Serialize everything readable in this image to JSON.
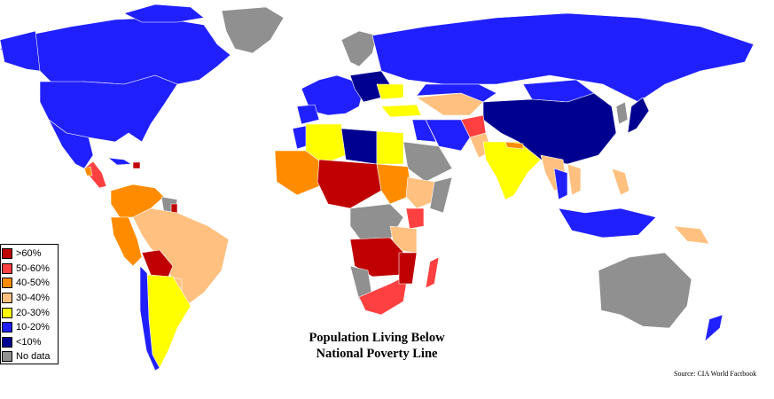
{
  "title_line1": "Population Living Below",
  "title_line2": "National Poverty Line",
  "source": "Source: CIA World Factbook",
  "legend": [
    {
      "label": ">60%",
      "color": "#c00000"
    },
    {
      "label": "50-60%",
      "color": "#ff4040"
    },
    {
      "label": "40-50%",
      "color": "#ff8c00"
    },
    {
      "label": "30-40%",
      "color": "#ffc080"
    },
    {
      "label": "20-30%",
      "color": "#ffff00"
    },
    {
      "label": "10-20%",
      "color": "#2020ff"
    },
    {
      "label": "<10%",
      "color": "#000090"
    },
    {
      "label": "No data",
      "color": "#909090"
    }
  ]
}
